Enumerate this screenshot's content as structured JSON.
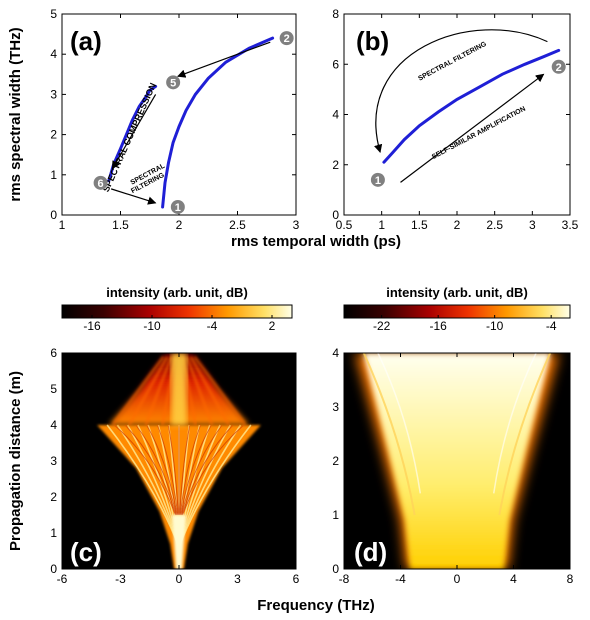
{
  "chart_data": [
    {
      "id": "a",
      "type": "line",
      "panel_label": "(a)",
      "xlabel": "rms temporal width (ps)",
      "ylabel": "rms spectral width (THz)",
      "xlim": [
        1,
        3
      ],
      "ylim": [
        0,
        5
      ],
      "xticks": [
        "1",
        "1.5",
        "2",
        "2.5",
        "3"
      ],
      "yticks": [
        "0",
        "1",
        "2",
        "3",
        "4",
        "5"
      ],
      "series": [
        {
          "x": [
            1.86,
            1.88,
            1.91,
            1.95,
            2.0,
            2.06,
            2.14,
            2.25,
            2.4,
            2.6,
            2.8
          ],
          "y": [
            0.2,
            0.8,
            1.3,
            1.8,
            2.2,
            2.6,
            3.0,
            3.4,
            3.8,
            4.15,
            4.4
          ]
        },
        {
          "x": [
            1.4,
            1.44,
            1.5,
            1.55,
            1.6,
            1.66,
            1.72,
            1.75,
            1.8
          ],
          "y": [
            0.85,
            1.25,
            1.65,
            2.0,
            2.35,
            2.7,
            2.95,
            3.1,
            3.2
          ]
        }
      ],
      "markers": [
        {
          "label": "1",
          "x": 1.99,
          "y": 0.2
        },
        {
          "label": "2",
          "x": 2.92,
          "y": 4.4
        },
        {
          "label": "5",
          "x": 1.95,
          "y": 3.3
        },
        {
          "label": "6",
          "x": 1.33,
          "y": 0.8
        }
      ],
      "annotations": {
        "compression": "SPECTRAL COMPRESSION",
        "filtering_top": "SPECTRAL",
        "filtering_bottom": "FILTERING"
      }
    },
    {
      "id": "b",
      "type": "line",
      "panel_label": "(b)",
      "xlabel": "rms temporal width (ps)",
      "xlim": [
        0.5,
        3.5
      ],
      "ylim": [
        0,
        8
      ],
      "xticks": [
        "0.5",
        "1",
        "1.5",
        "2",
        "2.5",
        "3",
        "3.5"
      ],
      "yticks": [
        "0",
        "2",
        "4",
        "6",
        "8"
      ],
      "series": [
        {
          "x": [
            1.03,
            1.15,
            1.3,
            1.5,
            1.75,
            2.0,
            2.3,
            2.6,
            2.9,
            3.15,
            3.35
          ],
          "y": [
            2.1,
            2.5,
            3.0,
            3.55,
            4.1,
            4.6,
            5.1,
            5.6,
            6.0,
            6.3,
            6.55
          ]
        }
      ],
      "markers": [
        {
          "label": "1",
          "x": 0.95,
          "y": 1.4
        },
        {
          "label": "2",
          "x": 3.35,
          "y": 5.9
        }
      ],
      "annotations": {
        "filtering": "SPECTRAL FILTERING",
        "amplification": "SELF-SIMILAR AMPLIFICATION"
      }
    },
    {
      "id": "c",
      "type": "heatmap",
      "panel_label": "(c)",
      "colorbar_label": "intensity (arb. unit, dB)",
      "colorbar_ticks": [
        "-16",
        "-10",
        "-4",
        "2"
      ],
      "colorbar_range": [
        -19,
        4
      ],
      "xlabel": "Frequency (THz)",
      "ylabel": "Propagation distance (m)",
      "xlim": [
        -6,
        6
      ],
      "ylim": [
        0,
        6
      ],
      "xticks": [
        "-6",
        "-3",
        "0",
        "3",
        "6"
      ],
      "yticks": [
        "0",
        "1",
        "2",
        "3",
        "4",
        "5",
        "6"
      ]
    },
    {
      "id": "d",
      "type": "heatmap",
      "panel_label": "(d)",
      "colorbar_label": "intensity (arb. unit, dB)",
      "colorbar_ticks": [
        "-22",
        "-16",
        "-10",
        "-4"
      ],
      "colorbar_range": [
        -26,
        -2
      ],
      "xlim": [
        -8,
        8
      ],
      "ylim": [
        0,
        4
      ],
      "xticks": [
        "-8",
        "-4",
        "0",
        "4",
        "8"
      ],
      "yticks": [
        "0",
        "1",
        "2",
        "3",
        "4"
      ]
    }
  ]
}
